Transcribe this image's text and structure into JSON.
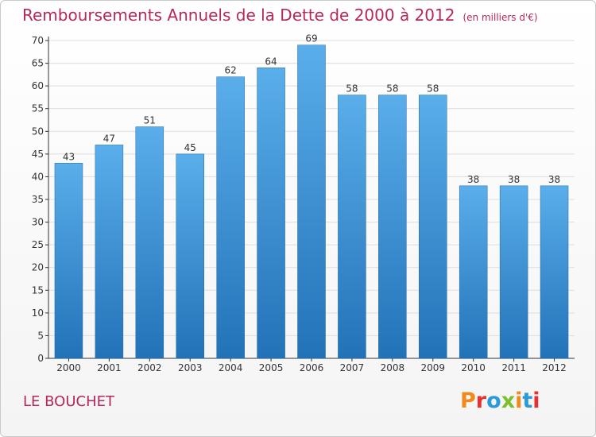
{
  "header": {
    "title": "Remboursements Annuels de la Dette de 2000 à 2012",
    "subtitle": "(en milliers d'€)"
  },
  "footer": {
    "commune": "LE BOUCHET",
    "logo_text": "Proxiti"
  },
  "colors": {
    "title": "#b5285b",
    "bar_top": "#5aaeea",
    "bar_bottom": "#2272b8",
    "axis": "#333333",
    "grid": "#dddddd",
    "logo": [
      "#f08a1c",
      "#e8312f",
      "#2b9ad6",
      "#7bbf2a",
      "#f08a1c",
      "#2b9ad6",
      "#e8312f"
    ]
  },
  "chart_data": {
    "type": "bar",
    "title": "Remboursements Annuels de la Dette de 2000 à 2012",
    "subtitle": "(en milliers d'€)",
    "xlabel": "",
    "ylabel": "",
    "categories": [
      "2000",
      "2001",
      "2002",
      "2003",
      "2004",
      "2005",
      "2006",
      "2007",
      "2008",
      "2009",
      "2010",
      "2011",
      "2012"
    ],
    "values": [
      43,
      47,
      51,
      45,
      62,
      64,
      69,
      58,
      58,
      58,
      38,
      38,
      38
    ],
    "ylim": [
      0,
      70
    ],
    "yticks": [
      0,
      5,
      10,
      15,
      20,
      25,
      30,
      35,
      40,
      45,
      50,
      55,
      60,
      65,
      70
    ],
    "grid": true,
    "data_labels": true
  }
}
